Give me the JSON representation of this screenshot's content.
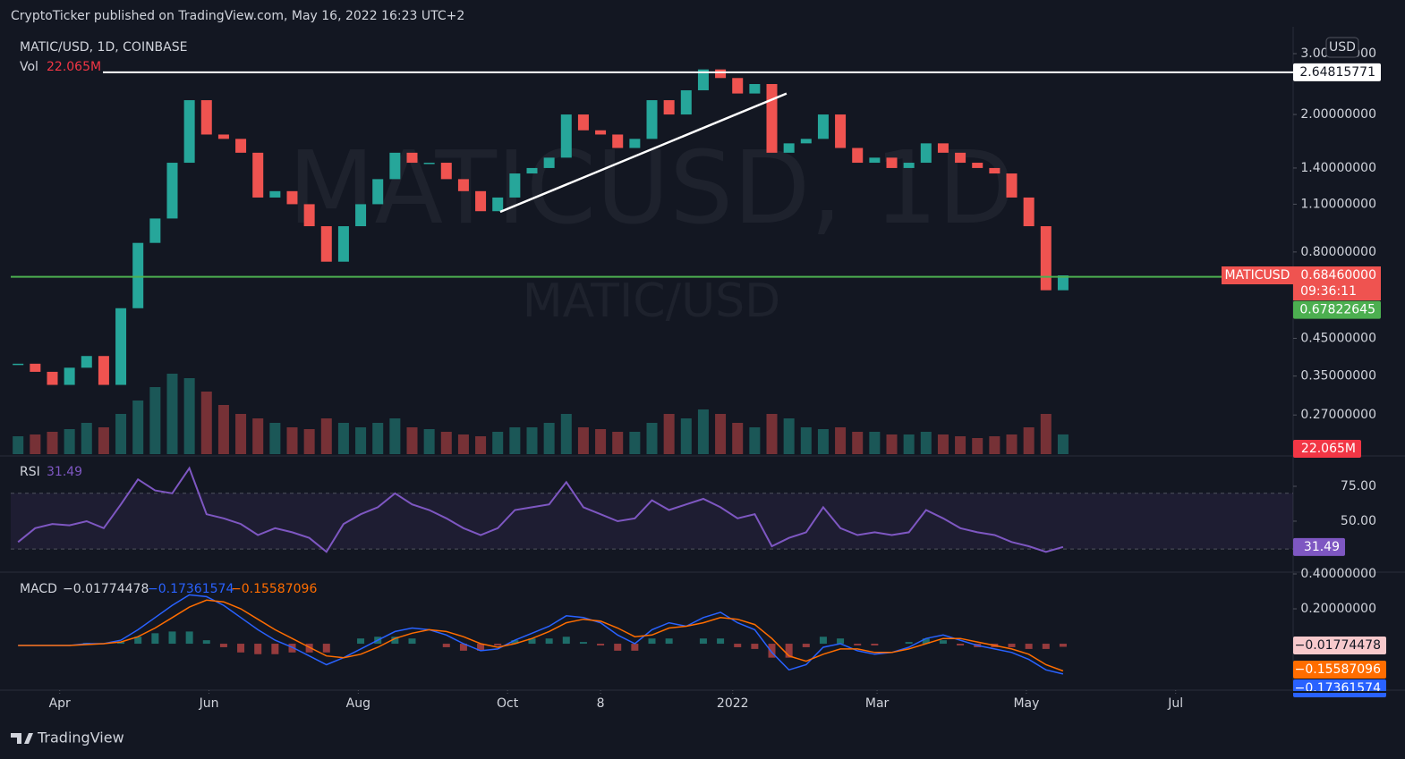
{
  "header": {
    "publisher": "CryptoTicker published on TradingView.com, May 16, 2022 16:23 UTC+2"
  },
  "footer": {
    "brand": "TradingView"
  },
  "chart_data": [
    {
      "type": "candlestick",
      "title": "MATIC/USD, 1D, COINBASE",
      "watermark": "MATICUSD, 1D",
      "watermark_sub": "MATIC/USD",
      "currency": "USD",
      "log_scale": true,
      "grid": false,
      "x": [
        "2021-03-15",
        "2021-03-22",
        "2021-03-29",
        "2021-04-05",
        "2021-04-12",
        "2021-04-19",
        "2021-04-26",
        "2021-05-03",
        "2021-05-10",
        "2021-05-17",
        "2021-05-24",
        "2021-05-31",
        "2021-06-07",
        "2021-06-14",
        "2021-06-21",
        "2021-06-28",
        "2021-07-05",
        "2021-07-12",
        "2021-07-19",
        "2021-07-26",
        "2021-08-02",
        "2021-08-09",
        "2021-08-16",
        "2021-08-23",
        "2021-08-30",
        "2021-09-06",
        "2021-09-13",
        "2021-09-20",
        "2021-09-27",
        "2021-10-04",
        "2021-10-11",
        "2021-10-18",
        "2021-10-25",
        "2021-11-01",
        "2021-11-08",
        "2021-11-15",
        "2021-11-22",
        "2021-11-29",
        "2021-12-06",
        "2021-12-13",
        "2021-12-20",
        "2021-12-27",
        "2022-01-03",
        "2022-01-10",
        "2022-01-17",
        "2022-01-24",
        "2022-01-31",
        "2022-02-07",
        "2022-02-14",
        "2022-02-21",
        "2022-02-28",
        "2022-03-07",
        "2022-03-14",
        "2022-03-21",
        "2022-03-28",
        "2022-04-04",
        "2022-04-11",
        "2022-04-18",
        "2022-04-25",
        "2022-05-02",
        "2022-05-09",
        "2022-05-16"
      ],
      "series": [
        {
          "name": "MATICUSD",
          "up_color": "#26a69a",
          "down_color": "#ef5350",
          "last_label": "0.68460000",
          "countdown": "09:36:11",
          "values": [
            0.38,
            0.36,
            0.33,
            0.37,
            0.4,
            0.33,
            0.55,
            0.85,
            1.0,
            1.45,
            2.2,
            1.75,
            1.7,
            1.55,
            1.15,
            1.2,
            1.1,
            0.95,
            0.75,
            0.95,
            1.1,
            1.3,
            1.55,
            1.45,
            1.45,
            1.3,
            1.2,
            1.05,
            1.15,
            1.35,
            1.4,
            1.5,
            2.0,
            1.8,
            1.75,
            1.6,
            1.7,
            2.2,
            2.0,
            2.35,
            2.7,
            2.55,
            2.3,
            2.45,
            1.55,
            1.65,
            1.7,
            2.0,
            1.6,
            1.45,
            1.5,
            1.4,
            1.45,
            1.65,
            1.55,
            1.45,
            1.4,
            1.35,
            1.15,
            0.95,
            0.62,
            0.6846
          ]
        }
      ],
      "volume": {
        "name": "Vol",
        "last_label": "22.065M",
        "values": [
          20,
          22,
          25,
          28,
          35,
          30,
          45,
          60,
          75,
          90,
          85,
          70,
          55,
          45,
          40,
          35,
          30,
          28,
          40,
          35,
          30,
          35,
          40,
          30,
          28,
          25,
          22,
          20,
          25,
          30,
          30,
          35,
          45,
          30,
          28,
          25,
          25,
          35,
          45,
          40,
          50,
          45,
          35,
          30,
          45,
          40,
          30,
          28,
          30,
          25,
          25,
          22,
          22,
          25,
          22,
          20,
          18,
          20,
          22,
          30,
          45,
          22.065
        ]
      },
      "xlim": [
        "2021-03-12",
        "2022-08-18"
      ],
      "xticks": [
        {
          "value": "2021-04-01",
          "label": "Apr"
        },
        {
          "value": "2021-06-01",
          "label": "Jun"
        },
        {
          "value": "2021-08-01",
          "label": "Aug"
        },
        {
          "value": "2021-10-01",
          "label": "Oct"
        },
        {
          "value": "2021-11-08",
          "label": "8"
        },
        {
          "value": "2022-01-01",
          "label": "2022"
        },
        {
          "value": "2022-03-01",
          "label": "Mar"
        },
        {
          "value": "2022-05-01",
          "label": "May"
        },
        {
          "value": "2022-07-01",
          "label": "Jul"
        }
      ],
      "ylim": [
        0.208,
        3.42
      ],
      "yticks": [
        {
          "value": 3,
          "label": "3.00000000"
        },
        {
          "value": 2,
          "label": "2.00000000"
        },
        {
          "value": 1.4,
          "label": "1.40000000"
        },
        {
          "value": 1.1,
          "label": "1.10000000"
        },
        {
          "value": 0.8,
          "label": "0.80000000"
        },
        {
          "value": 0.45,
          "label": "0.45000000"
        },
        {
          "value": 0.35,
          "label": "0.35000000"
        },
        {
          "value": 0.27,
          "label": "0.27000000"
        }
      ],
      "hlines": [
        {
          "value": 2.64815771,
          "label": "2.64815771",
          "color": "#ffffff"
        },
        {
          "value": 0.67822645,
          "label": "0.67822645",
          "color": "#4caf50"
        }
      ],
      "trendline": {
        "x": [
          "2021-09-28",
          "2022-01-23"
        ],
        "y": [
          1.045,
          2.3
        ],
        "color": "#ffffff"
      }
    },
    {
      "type": "line",
      "title": "RSI",
      "ylim": [
        14.7,
        95.5
      ],
      "band": [
        30,
        70
      ],
      "yticks": [
        {
          "value": 75,
          "label": "75.00"
        },
        {
          "value": 50,
          "label": "50.00"
        }
      ],
      "series": [
        {
          "color": "#7e57c2",
          "value_label": "31.49",
          "values": [
            35,
            45,
            48,
            47,
            50,
            45,
            62,
            80,
            72,
            70,
            88,
            55,
            52,
            48,
            40,
            45,
            42,
            38,
            28,
            48,
            55,
            60,
            70,
            62,
            58,
            52,
            45,
            40,
            45,
            58,
            60,
            62,
            78,
            60,
            55,
            50,
            52,
            65,
            58,
            62,
            66,
            60,
            52,
            55,
            32,
            38,
            42,
            60,
            45,
            40,
            42,
            40,
            42,
            58,
            52,
            45,
            42,
            40,
            35,
            32,
            28,
            31.49
          ]
        }
      ]
    },
    {
      "type": "macd",
      "title": "MACD",
      "ylim": [
        -0.256,
        0.4
      ],
      "yticks": [
        {
          "value": 0.4,
          "label": "0.40000000"
        },
        {
          "value": 0.2,
          "label": "0.20000000"
        }
      ],
      "series": [
        {
          "kind": "histogram",
          "up_color": "#26a69a",
          "down_color": "#ef5350",
          "color": "#f7c9cc",
          "last_label": "−0.01774478",
          "values": [
            0,
            0,
            0,
            0,
            0.005,
            0,
            0.01,
            0.04,
            0.06,
            0.07,
            0.07,
            0.02,
            -0.02,
            -0.05,
            -0.06,
            -0.06,
            -0.05,
            -0.05,
            -0.05,
            0,
            0.03,
            0.04,
            0.04,
            0.03,
            0,
            -0.02,
            -0.04,
            -0.04,
            -0.01,
            0.02,
            0.03,
            0.03,
            0.04,
            0.01,
            -0.01,
            -0.04,
            -0.04,
            0.03,
            0.03,
            0,
            0.03,
            0.03,
            -0.02,
            -0.03,
            -0.08,
            -0.08,
            -0.02,
            0.04,
            0.03,
            -0.01,
            -0.01,
            0,
            0.01,
            0.03,
            0.02,
            -0.01,
            -0.02,
            -0.02,
            -0.02,
            -0.03,
            -0.03,
            -0.01774478
          ]
        },
        {
          "kind": "line",
          "color": "#2962ff",
          "last_label": "−0.17361574",
          "values": [
            -0.01,
            -0.01,
            -0.01,
            -0.01,
            0,
            0,
            0.02,
            0.08,
            0.15,
            0.22,
            0.28,
            0.27,
            0.22,
            0.15,
            0.08,
            0.02,
            -0.02,
            -0.07,
            -0.12,
            -0.08,
            -0.03,
            0.02,
            0.07,
            0.09,
            0.08,
            0.05,
            0.0,
            -0.04,
            -0.03,
            0.02,
            0.06,
            0.1,
            0.16,
            0.15,
            0.12,
            0.05,
            0.0,
            0.08,
            0.12,
            0.1,
            0.15,
            0.18,
            0.12,
            0.08,
            -0.05,
            -0.15,
            -0.12,
            -0.02,
            0.0,
            -0.04,
            -0.06,
            -0.05,
            -0.02,
            0.03,
            0.05,
            0.02,
            -0.01,
            -0.03,
            -0.05,
            -0.09,
            -0.15,
            -0.17361574
          ]
        },
        {
          "kind": "line",
          "color": "#ff6d00",
          "last_label": "−0.15587096",
          "values": [
            -0.01,
            -0.01,
            -0.01,
            -0.01,
            -0.005,
            0,
            0.01,
            0.04,
            0.09,
            0.15,
            0.21,
            0.25,
            0.24,
            0.2,
            0.14,
            0.08,
            0.03,
            -0.02,
            -0.07,
            -0.08,
            -0.06,
            -0.02,
            0.03,
            0.06,
            0.08,
            0.07,
            0.04,
            0.0,
            -0.02,
            0.0,
            0.03,
            0.07,
            0.12,
            0.14,
            0.13,
            0.09,
            0.04,
            0.05,
            0.09,
            0.1,
            0.12,
            0.15,
            0.14,
            0.11,
            0.03,
            -0.07,
            -0.1,
            -0.06,
            -0.03,
            -0.03,
            -0.05,
            -0.05,
            -0.03,
            0.0,
            0.03,
            0.03,
            0.01,
            -0.01,
            -0.03,
            -0.06,
            -0.12,
            -0.15587096
          ]
        }
      ]
    }
  ]
}
